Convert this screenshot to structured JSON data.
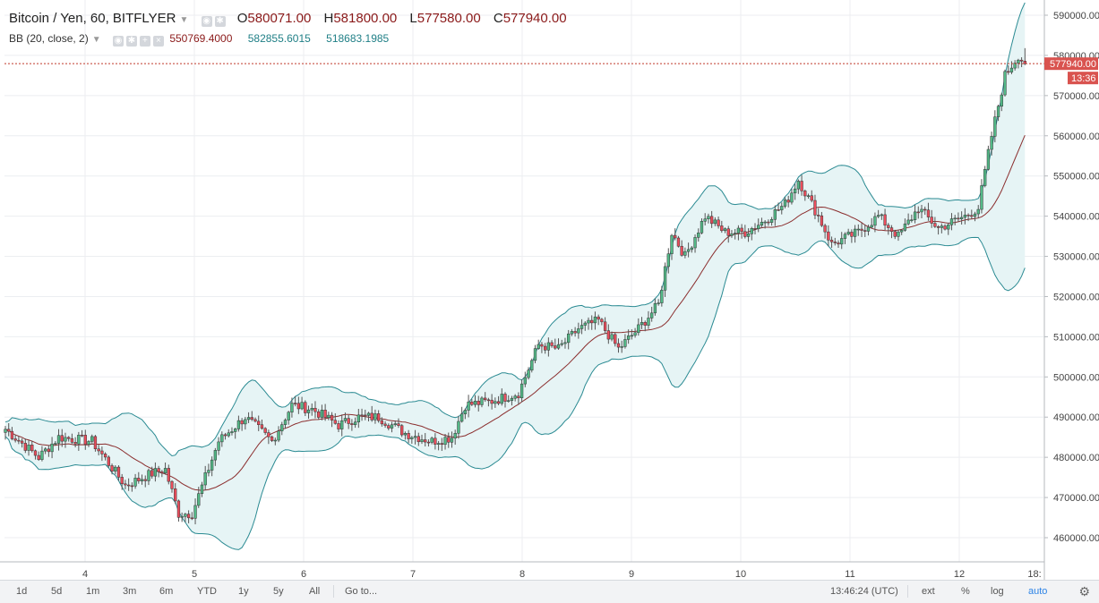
{
  "legend": {
    "symbol": "Bitcoin / Yen, 60, BITFLYER",
    "open_key": "O",
    "open": "580071.00",
    "high_key": "H",
    "high": "581800.00",
    "low_key": "L",
    "low": "577580.00",
    "close_key": "C",
    "close": "577940.00"
  },
  "indicator": {
    "label": "BB (20, close, 2)",
    "basis": "550769.4000",
    "upper": "582855.6015",
    "lower": "518683.1985"
  },
  "price_tag": "577940.00",
  "countdown_tag": "13:36",
  "toolbar": {
    "ranges": [
      "1d",
      "5d",
      "1m",
      "3m",
      "6m",
      "YTD",
      "1y",
      "5y",
      "All"
    ],
    "goto": "Go to...",
    "time": "13:46:24 (UTC)",
    "ext": "ext",
    "percent": "%",
    "log": "log",
    "auto": "auto"
  },
  "colors": {
    "up": "#53b987",
    "down": "#eb4d5c",
    "basis": "#8b2e2e",
    "band": "#2a8a92",
    "band_fill": "#e6f4f5",
    "price_line": "#c0392b"
  },
  "chart_data": {
    "type": "candlestick",
    "title": "Bitcoin / Yen, 60, BITFLYER",
    "y_axis": {
      "min": 455000,
      "max": 590000,
      "ticks": [
        460000,
        470000,
        480000,
        490000,
        500000,
        510000,
        520000,
        530000,
        540000,
        550000,
        560000,
        570000,
        580000,
        590000
      ]
    },
    "x_tick_labels": [
      "4",
      "5",
      "6",
      "7",
      "8",
      "9",
      "10",
      "11",
      "12",
      "18:"
    ],
    "ohlc_key_points": [
      {
        "x": 0,
        "close": 487000
      },
      {
        "x": 10,
        "close": 480000
      },
      {
        "x": 16,
        "close": 485000
      },
      {
        "x": 26,
        "close": 484000
      },
      {
        "x": 36,
        "close": 473000
      },
      {
        "x": 44,
        "close": 476000
      },
      {
        "x": 48,
        "close": 477000
      },
      {
        "x": 52,
        "close": 466000
      },
      {
        "x": 56,
        "close": 466000
      },
      {
        "x": 64,
        "close": 484000
      },
      {
        "x": 72,
        "close": 490000
      },
      {
        "x": 80,
        "close": 484000
      },
      {
        "x": 86,
        "close": 493000
      },
      {
        "x": 92,
        "close": 492000
      },
      {
        "x": 100,
        "close": 488000
      },
      {
        "x": 106,
        "close": 490000
      },
      {
        "x": 112,
        "close": 490000
      },
      {
        "x": 120,
        "close": 486000
      },
      {
        "x": 128,
        "close": 484000
      },
      {
        "x": 134,
        "close": 485000
      },
      {
        "x": 138,
        "close": 493000
      },
      {
        "x": 146,
        "close": 494000
      },
      {
        "x": 154,
        "close": 496000
      },
      {
        "x": 160,
        "close": 508000
      },
      {
        "x": 166,
        "close": 507000
      },
      {
        "x": 172,
        "close": 512000
      },
      {
        "x": 178,
        "close": 514000
      },
      {
        "x": 184,
        "close": 507000
      },
      {
        "x": 190,
        "close": 512000
      },
      {
        "x": 196,
        "close": 518000
      },
      {
        "x": 200,
        "close": 536000
      },
      {
        "x": 204,
        "close": 530000
      },
      {
        "x": 210,
        "close": 540000
      },
      {
        "x": 216,
        "close": 536000
      },
      {
        "x": 222,
        "close": 536000
      },
      {
        "x": 228,
        "close": 539000
      },
      {
        "x": 234,
        "close": 543000
      },
      {
        "x": 238,
        "close": 549000
      },
      {
        "x": 244,
        "close": 540000
      },
      {
        "x": 248,
        "close": 533000
      },
      {
        "x": 256,
        "close": 536000
      },
      {
        "x": 262,
        "close": 540000
      },
      {
        "x": 268,
        "close": 535000
      },
      {
        "x": 274,
        "close": 542000
      },
      {
        "x": 280,
        "close": 537000
      },
      {
        "x": 288,
        "close": 540000
      },
      {
        "x": 292,
        "close": 542000
      },
      {
        "x": 296,
        "close": 560000
      },
      {
        "x": 300,
        "close": 575000
      },
      {
        "x": 304,
        "close": 580000
      },
      {
        "x": 306,
        "close": 577940
      }
    ],
    "bollinger": {
      "period": 20,
      "source": "close",
      "stddev": 2
    }
  }
}
